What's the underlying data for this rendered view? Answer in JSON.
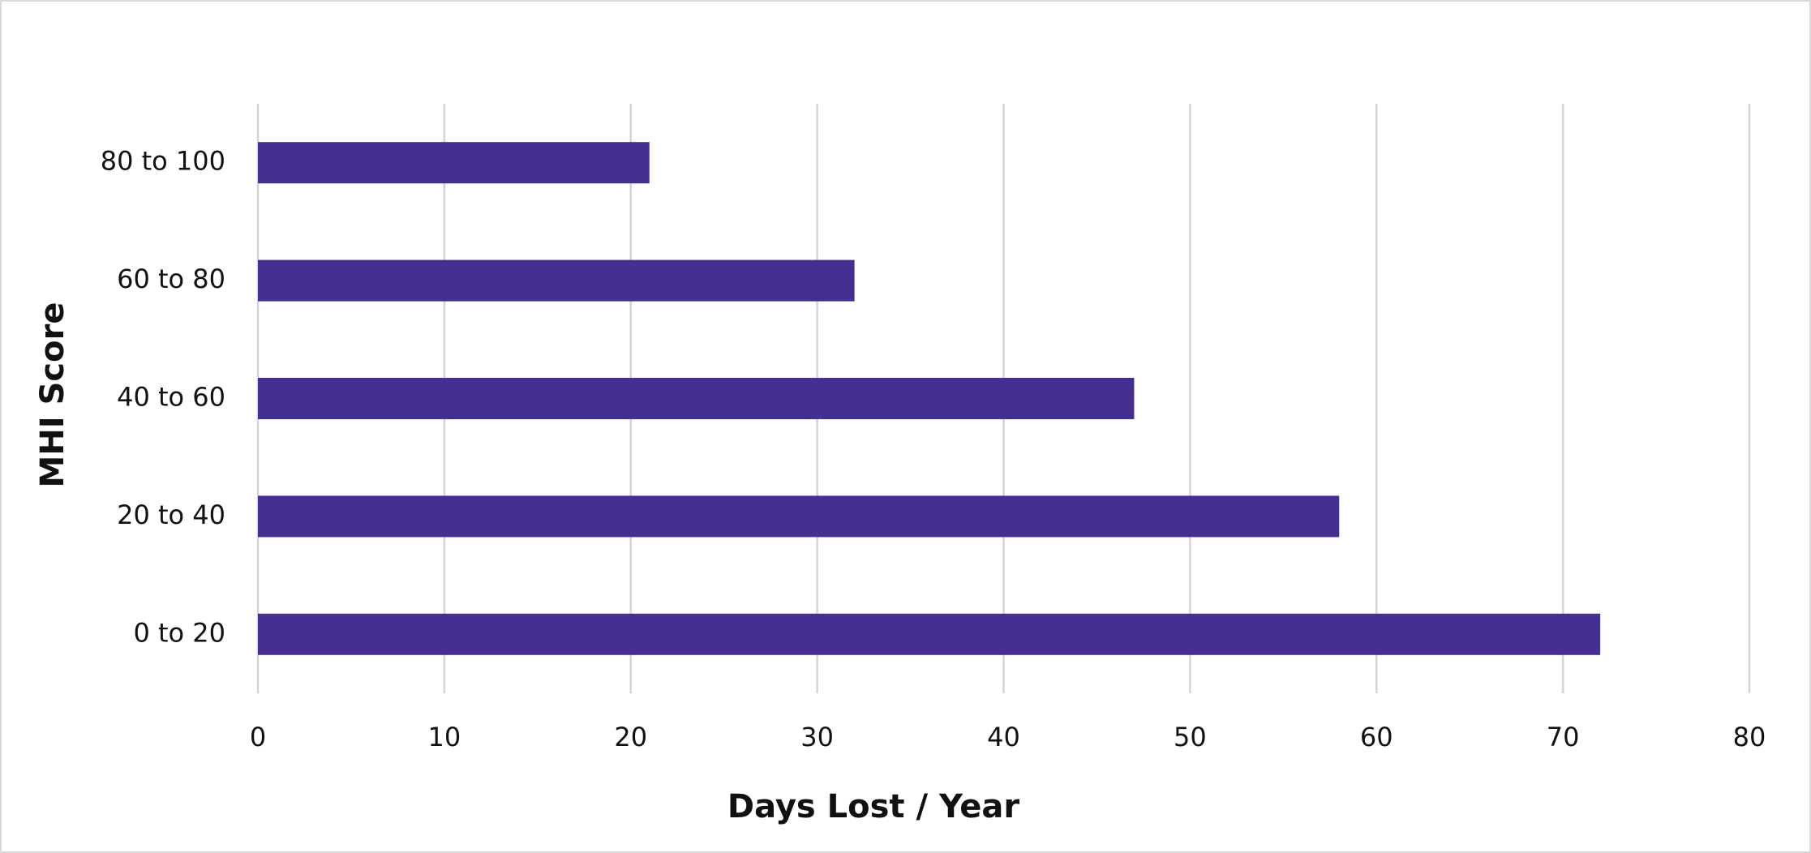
{
  "chart_data": {
    "type": "bar",
    "orientation": "horizontal",
    "x_label": "Days Lost / Year",
    "y_label": "MHI Score",
    "categories": [
      "0 to 20",
      "20 to 40",
      "40 to 60",
      "60 to 80",
      "80 to 100"
    ],
    "values": [
      72,
      58,
      47,
      32,
      21
    ],
    "color": "#452f91",
    "xlim": [
      0,
      80
    ],
    "xticks": [
      0,
      10,
      20,
      30,
      40,
      50,
      60,
      70,
      80
    ],
    "grid": true
  }
}
